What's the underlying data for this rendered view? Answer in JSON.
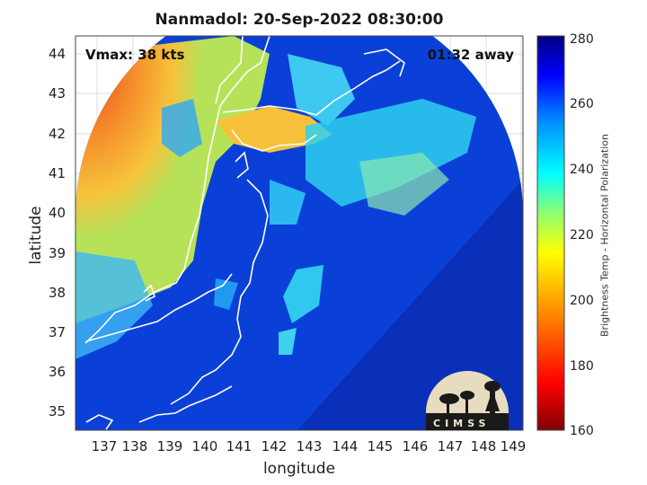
{
  "title": "Nanmadol: 20-Sep-2022 08:30:00",
  "annotations": {
    "vmax": "Vmax: 38 kts",
    "time_away": "01:32 away"
  },
  "axes": {
    "xlabel": "longitude",
    "ylabel": "latitude",
    "xticks": [
      "137",
      "138",
      "139",
      "140",
      "141",
      "142",
      "143",
      "144",
      "145",
      "146",
      "147",
      "148",
      "149"
    ],
    "yticks": [
      "44",
      "43",
      "42",
      "41",
      "40",
      "39",
      "38",
      "37",
      "36",
      "35"
    ]
  },
  "colorbar": {
    "label": "Brightness Temp - Horizontal Polarization",
    "ticks": [
      "280",
      "260",
      "240",
      "220",
      "200",
      "180",
      "160"
    ],
    "range": [
      160,
      280
    ],
    "colormap": "jet-reversed",
    "colors": [
      "#7f0000",
      "#ff0000",
      "#ff8000",
      "#ffff00",
      "#80ff80",
      "#00ffff",
      "#0080ff",
      "#0000ff",
      "#00007f"
    ]
  },
  "logo": {
    "text": "CIMSS"
  },
  "colors": {
    "coastline": "#ffffff",
    "ocean_warm": "#0a3fd6",
    "land_hot": "#f59a30"
  }
}
